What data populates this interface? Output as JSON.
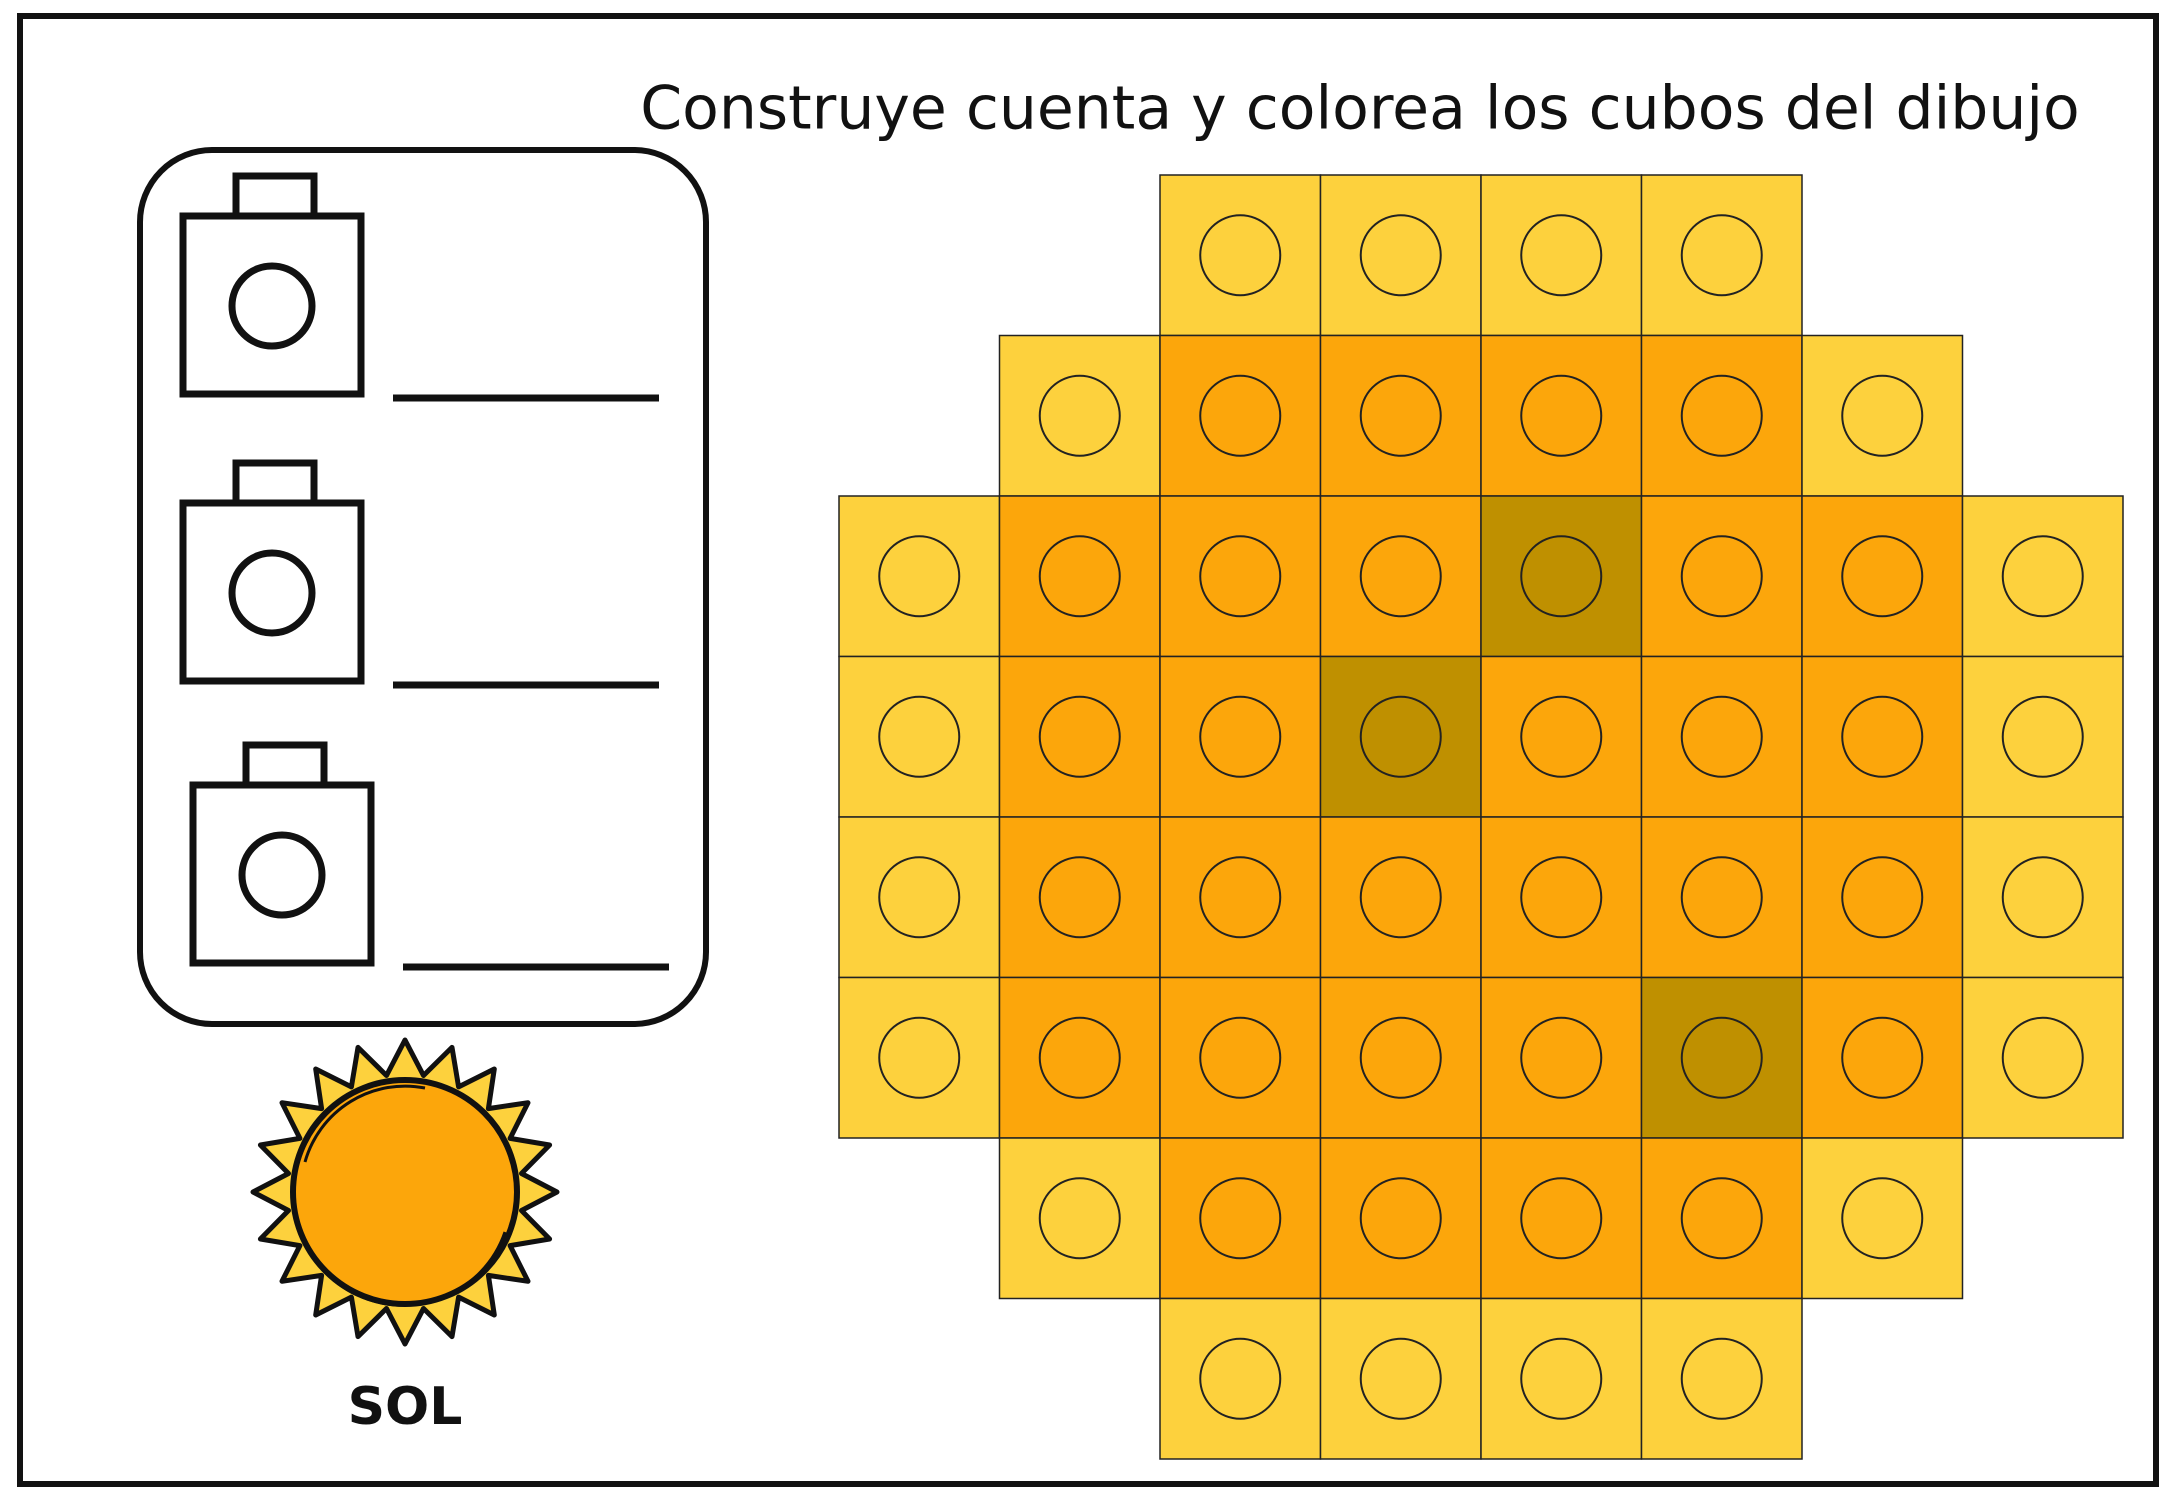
{
  "header": {
    "title": "Construye cuenta y colorea los cubos del dibujo"
  },
  "picture": {
    "label": "SOL"
  }
}
